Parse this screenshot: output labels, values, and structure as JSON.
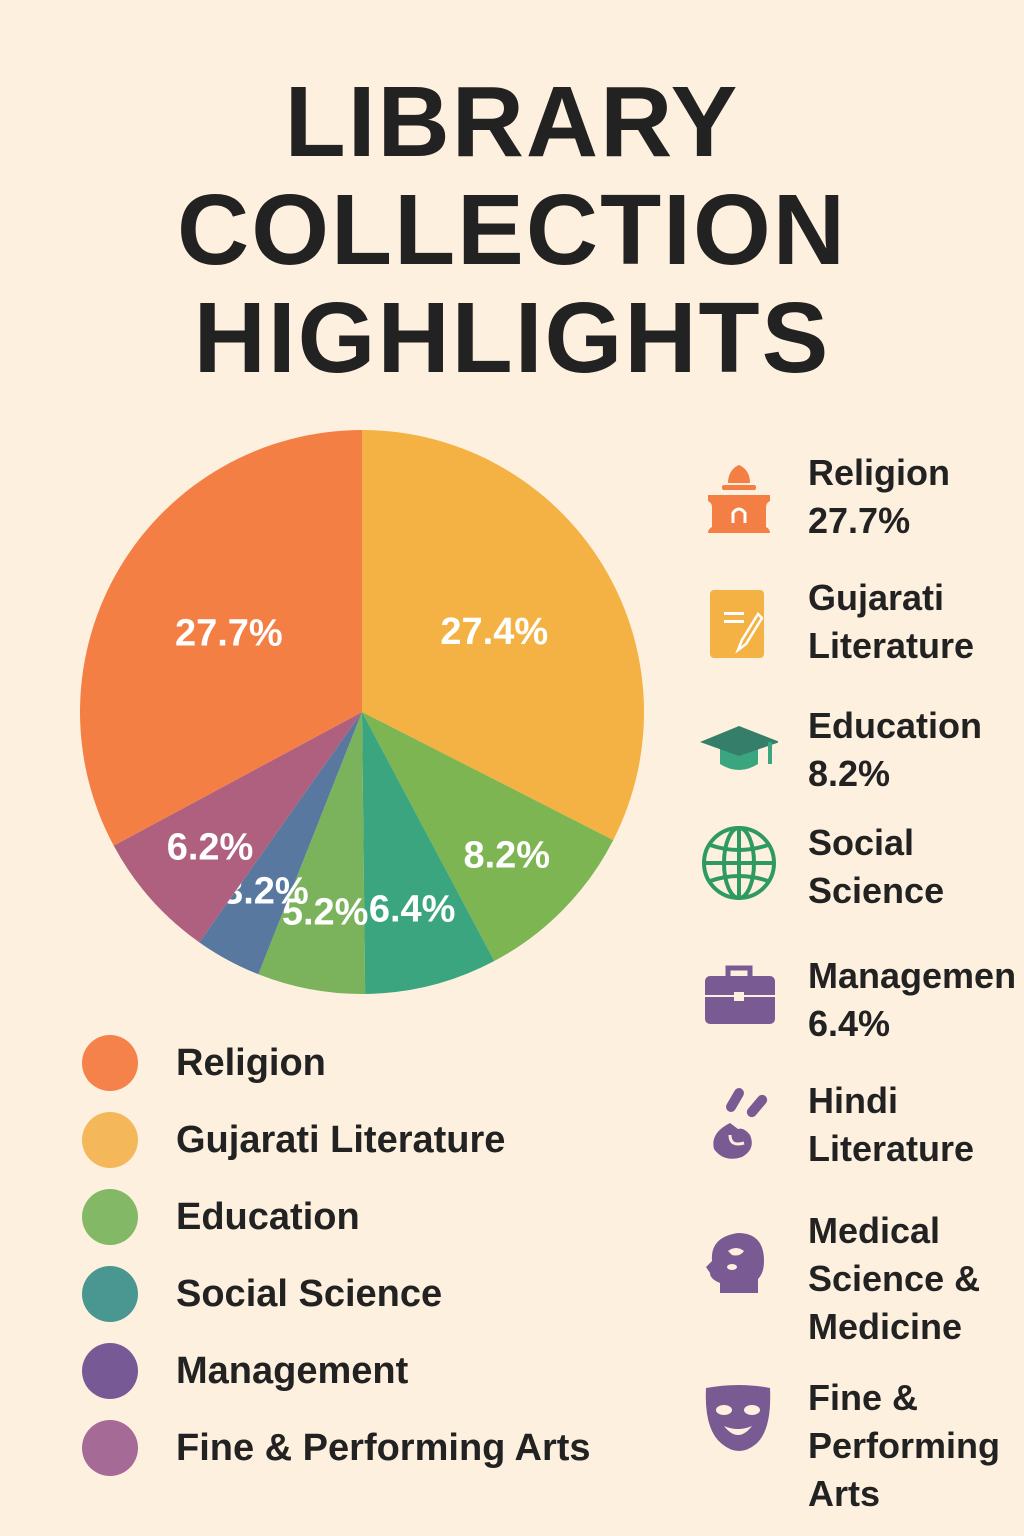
{
  "title": [
    "LIBRARY",
    "COLLECTION",
    "HIGHLIGHTS"
  ],
  "chart_data": {
    "type": "pie",
    "title": "LIBRARY COLLECTION HIGHLIGHTS",
    "slices": [
      {
        "label": "27.4%",
        "value": 27.4,
        "color": "#F4B245"
      },
      {
        "label": "8.2%",
        "value": 8.2,
        "color": "#7DB553"
      },
      {
        "label": "6.4%",
        "value": 6.4,
        "color": "#3AA57E"
      },
      {
        "label": "5.2%",
        "value": 5.2,
        "color": "#7BB35C"
      },
      {
        "label": "3.2%",
        "value": 3.2,
        "color": "#5878A0"
      },
      {
        "label": "6.2%",
        "value": 6.2,
        "color": "#B0607F"
      },
      {
        "label": "27.7%",
        "value": 27.7,
        "color": "#F47F45"
      }
    ],
    "legend": [
      {
        "label": "Religion",
        "color": "#F4824A"
      },
      {
        "label": "Gujarati Literature",
        "color": "#F4B85A"
      },
      {
        "label": "Education",
        "color": "#82B866"
      },
      {
        "label": "Social Science",
        "color": "#4A9690"
      },
      {
        "label": "Management",
        "color": "#775A95"
      },
      {
        "label": "Fine & Performing Arts",
        "color": "#A56A95"
      }
    ]
  },
  "side_list": [
    {
      "icon": "temple-icon",
      "lines": [
        "Religion",
        "27.7%"
      ],
      "color": "#F47F45"
    },
    {
      "icon": "document-pencil-icon",
      "lines": [
        "Gujarati",
        "Literature"
      ],
      "color": "#F4B245"
    },
    {
      "icon": "graduation-cap-icon",
      "lines": [
        "Education",
        "8.2%"
      ],
      "color": "#3A9C78"
    },
    {
      "icon": "globe-icon",
      "lines": [
        "Social",
        "Science"
      ],
      "color": "#2E9A62"
    },
    {
      "icon": "briefcase-icon",
      "lines": [
        "Managemen",
        "6.4%"
      ],
      "color": "#7A5A92"
    },
    {
      "icon": "hindi-script-icon",
      "lines": [
        "Hindi",
        "Literature"
      ],
      "color": "#7A5A92"
    },
    {
      "icon": "head-brain-icon",
      "lines": [
        "Medical",
        "Science &",
        "Medicine"
      ],
      "color": "#7A5A92"
    },
    {
      "icon": "theater-mask-icon",
      "lines": [
        "Fine &",
        "Performing",
        "Arts"
      ],
      "color": "#7A5A92"
    }
  ]
}
